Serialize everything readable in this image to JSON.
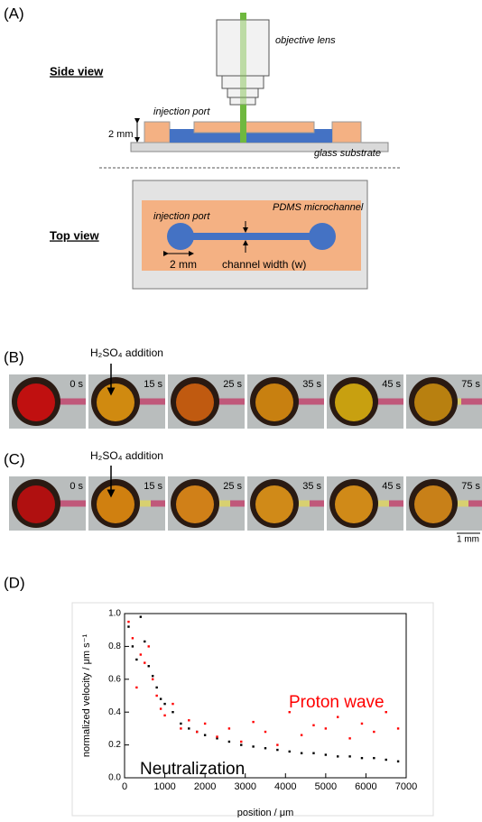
{
  "panel_a": {
    "label": "(A)",
    "side_view": {
      "title": "Side view",
      "objective": "objective lens",
      "injection_port": "injection port",
      "thickness": "2 mm",
      "substrate": "glass substrate"
    },
    "top_view": {
      "title": "Top view",
      "injection_port": "injection port",
      "material": "PDMS microchannel",
      "port_size": "2 mm",
      "channel_width": "channel width (w)"
    }
  },
  "panel_b": {
    "label": "(B)",
    "annotation": "H₂SO₄ addition",
    "times": [
      "0 s",
      "15 s",
      "25 s",
      "35 s",
      "45 s",
      "75 s"
    ]
  },
  "panel_c": {
    "label": "(C)",
    "annotation": "H₂SO₄ addition",
    "times": [
      "0 s",
      "15 s",
      "25 s",
      "35 s",
      "45 s",
      "75 s"
    ],
    "scale_bar": "1 mm"
  },
  "panel_d": {
    "label": "(D)",
    "chart_data": {
      "type": "scatter",
      "x_label": "position / μm",
      "y_label": "normalized velocity / μm s⁻¹",
      "xlim": [
        0,
        7000
      ],
      "xticks": [
        0,
        1000,
        2000,
        3000,
        4000,
        5000,
        6000,
        7000
      ],
      "ylim": [
        0,
        1.0
      ],
      "yticks": [
        {
          "value": 0,
          "label": "0.0"
        },
        0.2,
        0.4,
        0.6,
        0.8,
        {
          "value": 1.0,
          "label": "1.0"
        }
      ],
      "series": [
        {
          "name": "Neutralization",
          "color": "#000000",
          "x": [
            100,
            200,
            300,
            400,
            500,
            600,
            700,
            800,
            900,
            1000,
            1200,
            1400,
            1600,
            1800,
            2000,
            2300,
            2600,
            2900,
            3200,
            3500,
            3800,
            4100,
            4400,
            4700,
            5000,
            5300,
            5600,
            5900,
            6200,
            6500,
            6800
          ],
          "values": [
            0.92,
            0.8,
            0.72,
            0.98,
            0.83,
            0.68,
            0.62,
            0.55,
            0.48,
            0.45,
            0.4,
            0.33,
            0.3,
            0.28,
            0.26,
            0.24,
            0.22,
            0.2,
            0.19,
            0.18,
            0.17,
            0.16,
            0.15,
            0.15,
            0.14,
            0.13,
            0.13,
            0.12,
            0.12,
            0.11,
            0.1
          ]
        },
        {
          "name": "Proton wave",
          "color": "#ff0000",
          "x": [
            100,
            200,
            300,
            400,
            500,
            600,
            700,
            800,
            900,
            1000,
            1200,
            1400,
            1600,
            1800,
            2000,
            2300,
            2600,
            2900,
            3200,
            3500,
            3800,
            4100,
            4400,
            4700,
            5000,
            5300,
            5600,
            5900,
            6200,
            6500,
            6800
          ],
          "values": [
            0.95,
            0.85,
            0.55,
            0.75,
            0.7,
            0.8,
            0.6,
            0.5,
            0.42,
            0.38,
            0.45,
            0.3,
            0.35,
            0.28,
            0.33,
            0.25,
            0.3,
            0.22,
            0.34,
            0.28,
            0.2,
            0.4,
            0.26,
            0.32,
            0.3,
            0.37,
            0.24,
            0.33,
            0.28,
            0.4,
            0.3
          ]
        }
      ]
    }
  }
}
